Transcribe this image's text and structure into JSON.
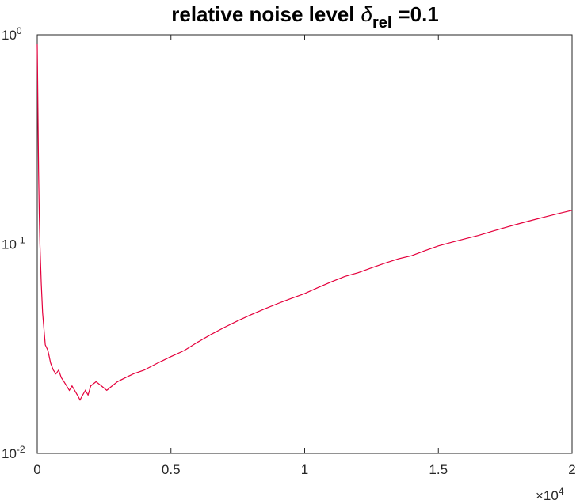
{
  "chart_data": {
    "type": "line",
    "title_parts": [
      "relative noise level",
      "δ",
      "rel",
      "=0.1"
    ],
    "x": [
      0,
      25,
      50,
      75,
      100,
      150,
      200,
      300,
      400,
      500,
      600,
      700,
      800,
      900,
      1000,
      1100,
      1200,
      1300,
      1400,
      1500,
      1600,
      1700,
      1800,
      1900,
      2000,
      2200,
      2400,
      2600,
      2800,
      3000,
      3300,
      3600,
      4000,
      4500,
      5000,
      5500,
      6000,
      6500,
      7000,
      7500,
      8000,
      8500,
      9000,
      9500,
      10000,
      10500,
      11000,
      11500,
      12000,
      12500,
      13000,
      13500,
      14000,
      14500,
      15000,
      15500,
      16000,
      16500,
      17000,
      17500,
      18000,
      18500,
      19000,
      19500,
      20000
    ],
    "series": [
      {
        "color": "#e4003c",
        "values": [
          0.9,
          0.45,
          0.22,
          0.14,
          0.1,
          0.065,
          0.047,
          0.033,
          0.031,
          0.027,
          0.025,
          0.024,
          0.025,
          0.023,
          0.022,
          0.021,
          0.02,
          0.021,
          0.02,
          0.019,
          0.018,
          0.019,
          0.02,
          0.019,
          0.021,
          0.022,
          0.021,
          0.02,
          0.021,
          0.022,
          0.023,
          0.024,
          0.025,
          0.027,
          0.029,
          0.031,
          0.034,
          0.037,
          0.04,
          0.043,
          0.046,
          0.049,
          0.052,
          0.055,
          0.058,
          0.062,
          0.066,
          0.07,
          0.073,
          0.077,
          0.081,
          0.085,
          0.088,
          0.093,
          0.098,
          0.102,
          0.106,
          0.11,
          0.115,
          0.12,
          0.125,
          0.13,
          0.135,
          0.14,
          0.145
        ]
      }
    ],
    "xlim": [
      0,
      20000
    ],
    "xticks": [
      {
        "value": 0,
        "label": "0"
      },
      {
        "value": 5000,
        "label": "0.5"
      },
      {
        "value": 10000,
        "label": "1"
      },
      {
        "value": 15000,
        "label": "1.5"
      },
      {
        "value": 20000,
        "label": "2"
      }
    ],
    "x_exponent_label": {
      "base": "×10",
      "exponent": "4"
    },
    "ylim": [
      0.01,
      1
    ],
    "log_y": true,
    "yticks": [
      {
        "value": 0.01,
        "label": "10",
        "exponent": "-2"
      },
      {
        "value": 0.1,
        "label": "10",
        "exponent": "-1"
      },
      {
        "value": 1,
        "label": "10",
        "exponent": "0"
      }
    ]
  }
}
